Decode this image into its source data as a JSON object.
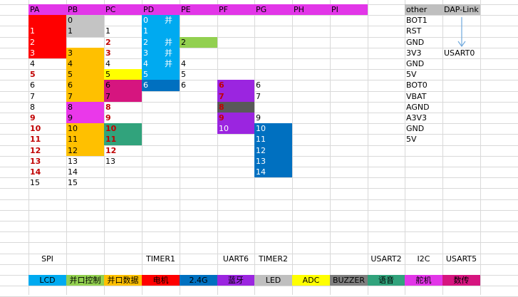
{
  "colors": {
    "header": "#e236e8",
    "red": "#ff0000",
    "silver": "#c4c4c4",
    "orange": "#ffc000",
    "yellow": "#ffff00",
    "magenta_dark": "#d6157f",
    "magenta_light": "#ea38ea",
    "teal": "#31a37c",
    "sky": "#00aaf0",
    "navy": "#0070c0",
    "green_light": "#92d050",
    "purple": "#9b25e0",
    "grey_dark": "#595959",
    "blue": "#0070c0",
    "grey_col": "#bfbfbf",
    "arrow": "#6fa8dc"
  },
  "columns": [
    "PA",
    "PB",
    "PC",
    "PD",
    "PE",
    "PF",
    "PG",
    "PH",
    "PI",
    "",
    "other",
    "DAP-Link"
  ],
  "grid_rows": [
    {
      "PB": "0",
      "PD": "0",
      "PD_note": "并",
      "other": "BOT1"
    },
    {
      "PA": "1",
      "PB": "1",
      "PC": "1",
      "PD": "1",
      "other": "RST"
    },
    {
      "PA": "2",
      "PC": "2",
      "PD": "2",
      "PD_note": "并",
      "PE": "2",
      "other": "GND"
    },
    {
      "PA": "3",
      "PB": "3",
      "PC": "3",
      "PD": "3",
      "PD_note": "并",
      "other": "3V3",
      "dap": "USART0"
    },
    {
      "PA": "4",
      "PB": "4",
      "PC": "4",
      "PD": "4",
      "PD_note": "并",
      "PE": "4",
      "other": "GND"
    },
    {
      "PA": "5",
      "PB": "5",
      "PC": "5",
      "PD": "5",
      "PE": "5",
      "other": "5V"
    },
    {
      "PA": "6",
      "PB": "6",
      "PC": "6",
      "PD": "6",
      "PE": "6",
      "PF": "6",
      "PG": "6",
      "other": "BOT0"
    },
    {
      "PA": "7",
      "PB": "7",
      "PC": "7",
      "PF": "7",
      "PG": "7",
      "other": "VBAT"
    },
    {
      "PA": "8",
      "PB": "8",
      "PC": "8",
      "PF": "8",
      "other": "AGND"
    },
    {
      "PA": "9",
      "PB": "9",
      "PC": "9",
      "PF": "9",
      "PG": "9",
      "other": "A3V3"
    },
    {
      "PA": "10",
      "PB": "10",
      "PC": "10",
      "PF": "10",
      "PG": "10",
      "other": "GND"
    },
    {
      "PA": "11",
      "PB": "11",
      "PC": "11",
      "PG": "11",
      "other": "5V"
    },
    {
      "PA": "12",
      "PB": "12",
      "PC": "12",
      "PG": "12"
    },
    {
      "PA": "13",
      "PB": "13",
      "PC": "13",
      "PG": "13"
    },
    {
      "PA": "14",
      "PB": "14",
      "PG": "14"
    },
    {
      "PA": "15",
      "PB": "15"
    }
  ],
  "function_row": [
    "SPI",
    "",
    "",
    "TIMER1",
    "",
    "UART6",
    "TIMER2",
    "",
    "",
    "USART2",
    "I2C",
    "USART5"
  ],
  "legend": [
    {
      "label": "LCD",
      "color": "#00aaf0"
    },
    {
      "label": "并口控制",
      "color": "#92d050"
    },
    {
      "label": "并口数据",
      "color": "#ffc000"
    },
    {
      "label": "电机",
      "color": "#ff0000"
    },
    {
      "label": "2.4G",
      "color": "#0070c0"
    },
    {
      "label": "蓝牙",
      "color": "#9b25e0"
    },
    {
      "label": "LED",
      "color": "#bfbfbf"
    },
    {
      "label": "ADC",
      "color": "#ffff00"
    },
    {
      "label": "BUZZER",
      "color": "#7f7f7f"
    },
    {
      "label": "语音",
      "color": "#31a37c"
    },
    {
      "label": "舵机",
      "color": "#e236e8"
    },
    {
      "label": "数传",
      "color": "#d6157f"
    }
  ]
}
